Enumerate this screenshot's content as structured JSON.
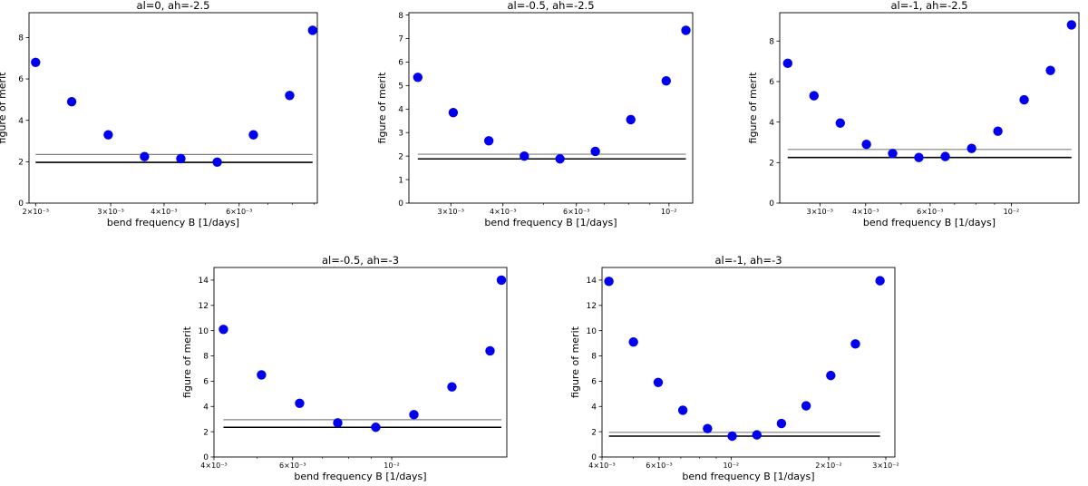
{
  "chart_data": [
    {
      "type": "scatter",
      "title": "al=0, ah=-2.5",
      "xlabel": "bend frequency B [1/days]",
      "ylabel": "figure of merit",
      "xscale": "log",
      "xlim": [
        0.00193,
        0.00915
      ],
      "ylim": [
        0,
        9.2
      ],
      "yticks": [
        0,
        2,
        4,
        6,
        8
      ],
      "xticks": [
        {
          "v": 0.002,
          "label": "2×10⁻³"
        },
        {
          "v": 0.003,
          "label": "3×10⁻³"
        },
        {
          "v": 0.004,
          "label": "4×10⁻³"
        },
        {
          "v": 0.006,
          "label": "6×10⁻³"
        }
      ],
      "x": [
        0.002,
        0.00243,
        0.00296,
        0.0036,
        0.00438,
        0.00533,
        0.00648,
        0.00788,
        0.00892
      ],
      "y": [
        6.8,
        4.9,
        3.3,
        2.25,
        2.15,
        1.98,
        3.3,
        5.2,
        8.35
      ],
      "hlines": [
        {
          "y": 2.35,
          "color": "#808080"
        },
        {
          "y": 1.97,
          "color": "#000000"
        }
      ],
      "marker_color": "#0000ee"
    },
    {
      "type": "scatter",
      "title": "al=-0.5, ah=-2.5",
      "xlabel": "bend frequency B [1/days]",
      "ylabel": "figure of merit",
      "xscale": "log",
      "xlim": [
        0.00238,
        0.0114
      ],
      "ylim": [
        0,
        8.1
      ],
      "yticks": [
        0,
        1,
        2,
        3,
        4,
        5,
        6,
        7,
        8
      ],
      "xticks": [
        {
          "v": 0.003,
          "label": "3×10⁻³"
        },
        {
          "v": 0.004,
          "label": "4×10⁻³"
        },
        {
          "v": 0.006,
          "label": "6×10⁻³"
        },
        {
          "v": 0.01,
          "label": "10⁻²"
        }
      ],
      "x": [
        0.0025,
        0.00304,
        0.0037,
        0.0045,
        0.00548,
        0.00666,
        0.0081,
        0.00985,
        0.01098
      ],
      "y": [
        5.35,
        3.85,
        2.65,
        2.0,
        1.88,
        2.2,
        3.55,
        5.2,
        7.35
      ],
      "hlines": [
        {
          "y": 2.08,
          "color": "#808080"
        },
        {
          "y": 1.88,
          "color": "#000000"
        }
      ],
      "marker_color": "#0000ee"
    },
    {
      "type": "scatter",
      "title": "al=-1, ah=-2.5",
      "xlabel": "bend frequency B [1/days]",
      "ylabel": "figure of merit",
      "xscale": "log",
      "xlim": [
        0.00233,
        0.0153
      ],
      "ylim": [
        0,
        9.4
      ],
      "yticks": [
        0,
        2,
        4,
        6,
        8
      ],
      "xticks": [
        {
          "v": 0.003,
          "label": "3×10⁻³"
        },
        {
          "v": 0.004,
          "label": "4×10⁻³"
        },
        {
          "v": 0.006,
          "label": "6×10⁻³"
        },
        {
          "v": 0.01,
          "label": "10⁻²"
        }
      ],
      "x": [
        0.00245,
        0.00289,
        0.00341,
        0.00402,
        0.00474,
        0.00559,
        0.0066,
        0.00779,
        0.00919,
        0.01084,
        0.01279,
        0.0146
      ],
      "y": [
        6.9,
        5.3,
        3.95,
        2.9,
        2.45,
        2.25,
        2.3,
        2.7,
        3.55,
        5.1,
        6.55,
        8.8
      ],
      "hlines": [
        {
          "y": 2.65,
          "color": "#808080"
        },
        {
          "y": 2.25,
          "color": "#000000"
        }
      ],
      "marker_color": "#0000ee"
    },
    {
      "type": "scatter",
      "title": "al=-0.5, ah=-3",
      "xlabel": "bend frequency B [1/days]",
      "ylabel": "figure of merit",
      "xscale": "log",
      "xlim": [
        0.004,
        0.0181
      ],
      "ylim": [
        0,
        15
      ],
      "yticks": [
        0,
        2,
        4,
        6,
        8,
        10,
        12,
        14
      ],
      "xticks": [
        {
          "v": 0.004,
          "label": "4×10⁻³"
        },
        {
          "v": 0.006,
          "label": "6×10⁻³"
        },
        {
          "v": 0.01,
          "label": "10⁻²"
        }
      ],
      "x": [
        0.0042,
        0.00511,
        0.00622,
        0.00757,
        0.00921,
        0.01121,
        0.01364,
        0.0166,
        0.0176
      ],
      "y": [
        10.1,
        6.5,
        4.25,
        2.7,
        2.35,
        3.35,
        5.55,
        8.4,
        14.0
      ],
      "hlines": [
        {
          "y": 2.95,
          "color": "#808080"
        },
        {
          "y": 2.35,
          "color": "#000000"
        }
      ],
      "marker_color": "#0000ee"
    },
    {
      "type": "scatter",
      "title": "al=-1, ah=-3",
      "xlabel": "bend frequency B [1/days]",
      "ylabel": "figure of merit",
      "xscale": "log",
      "xlim": [
        0.004,
        0.032
      ],
      "ylim": [
        0,
        15
      ],
      "yticks": [
        0,
        2,
        4,
        6,
        8,
        10,
        12,
        14
      ],
      "xticks": [
        {
          "v": 0.004,
          "label": "4×10⁻³"
        },
        {
          "v": 0.006,
          "label": "6×10⁻³"
        },
        {
          "v": 0.01,
          "label": "10⁻²"
        },
        {
          "v": 0.02,
          "label": "2×10⁻²"
        },
        {
          "v": 0.03,
          "label": "3×10⁻²"
        }
      ],
      "x": [
        0.0042,
        0.005,
        0.00596,
        0.0071,
        0.00846,
        0.01008,
        0.01201,
        0.0143,
        0.01704,
        0.0203,
        0.02418,
        0.0288
      ],
      "y": [
        13.9,
        9.1,
        5.9,
        3.7,
        2.25,
        1.65,
        1.75,
        2.65,
        4.05,
        6.45,
        8.95,
        13.95
      ],
      "hlines": [
        {
          "y": 1.95,
          "color": "#808080"
        },
        {
          "y": 1.65,
          "color": "#000000"
        }
      ],
      "marker_color": "#0000ee"
    }
  ]
}
